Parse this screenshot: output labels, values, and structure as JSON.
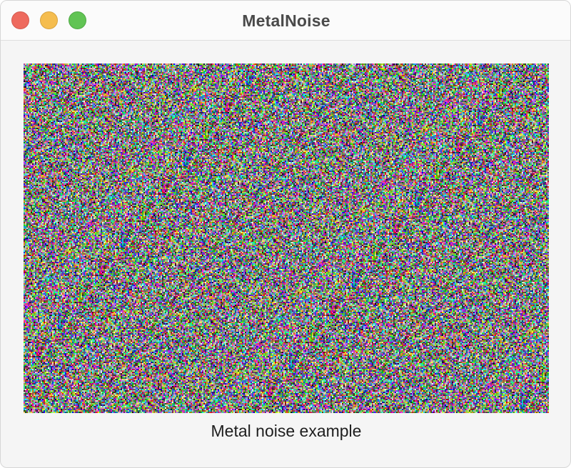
{
  "window": {
    "title": "MetalNoise",
    "controls": {
      "close": "close-button",
      "minimize": "minimize-button",
      "zoom": "zoom-button"
    }
  },
  "view": {
    "content": "random color noise",
    "caption": "Metal noise example"
  },
  "colors": {
    "close": "#ee6a5e",
    "minimize": "#f5bd4f",
    "zoom": "#61c454",
    "background": "#f5f5f5"
  }
}
